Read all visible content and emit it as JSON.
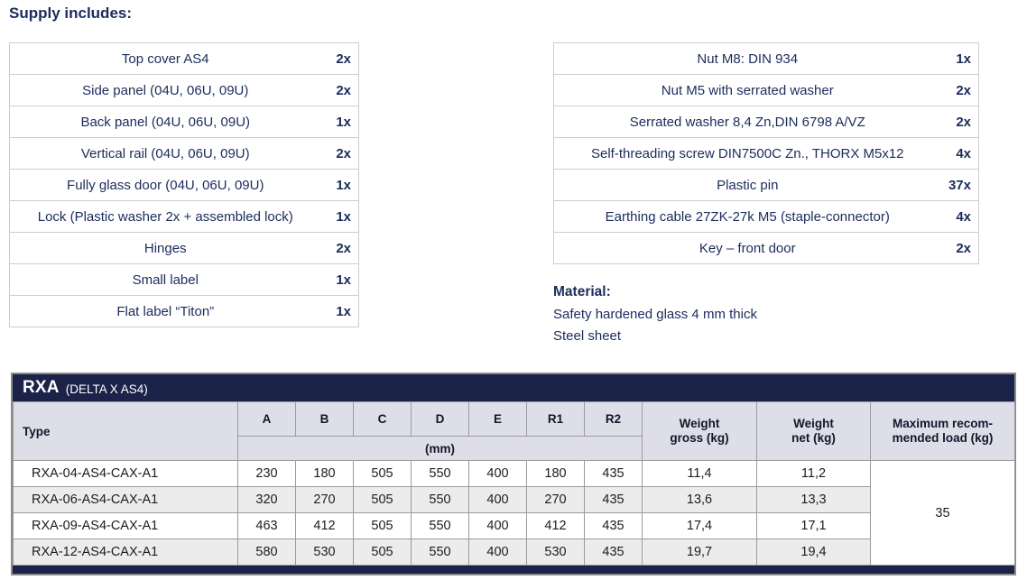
{
  "title": "Supply includes:",
  "supply_left": {
    "items": [
      {
        "name": "Top cover AS4",
        "qty": "2x"
      },
      {
        "name": "Side panel (04U, 06U, 09U)",
        "qty": "2x"
      },
      {
        "name": "Back panel (04U, 06U, 09U)",
        "qty": "1x"
      },
      {
        "name": "Vertical rail (04U, 06U, 09U)",
        "qty": "2x"
      },
      {
        "name": "Fully glass door (04U, 06U, 09U)",
        "qty": "1x"
      },
      {
        "name": "Lock (Plastic washer 2x + assembled lock)",
        "qty": "1x"
      },
      {
        "name": "Hinges",
        "qty": "2x"
      },
      {
        "name": "Small label",
        "qty": "1x"
      },
      {
        "name": "Flat label “Titon”",
        "qty": "1x"
      }
    ]
  },
  "supply_right": {
    "items": [
      {
        "name": "Nut M8: DIN 934",
        "qty": "1x"
      },
      {
        "name": "Nut M5 with serrated washer",
        "qty": "2x"
      },
      {
        "name": "Serrated washer 8,4 Zn,DIN 6798 A/VZ",
        "qty": "2x"
      },
      {
        "name": "Self-threading screw DIN7500C Zn., THORX M5x12",
        "qty": "4x"
      },
      {
        "name": "Plastic pin",
        "qty": "37x"
      },
      {
        "name": "Earthing cable 27ZK-27k M5 (staple-connector)",
        "qty": "4x"
      },
      {
        "name": "Key – front door",
        "qty": "2x"
      }
    ]
  },
  "material": {
    "title": "Material:",
    "lines": [
      "Safety hardened glass 4 mm thick",
      "Steel sheet"
    ]
  },
  "rxa": {
    "title": "RXA",
    "subtitle": "(DELTA X AS4)",
    "headers": {
      "type": "Type",
      "dims": [
        "A",
        "B",
        "C",
        "D",
        "E",
        "R1",
        "R2"
      ],
      "unit": "(mm)",
      "weight_gross": "Weight\ngross (kg)",
      "weight_net": "Weight\nnet (kg)",
      "max_load": "Maximum recom-\nmended load (kg)"
    },
    "rows": [
      {
        "type": "RXA-04-AS4-CAX-A1",
        "dims": [
          "230",
          "180",
          "505",
          "550",
          "400",
          "180",
          "435"
        ],
        "weight_gross": "11,4",
        "weight_net": "11,2"
      },
      {
        "type": "RXA-06-AS4-CAX-A1",
        "dims": [
          "320",
          "270",
          "505",
          "550",
          "400",
          "270",
          "435"
        ],
        "weight_gross": "13,6",
        "weight_net": "13,3"
      },
      {
        "type": "RXA-09-AS4-CAX-A1",
        "dims": [
          "463",
          "412",
          "505",
          "550",
          "400",
          "412",
          "435"
        ],
        "weight_gross": "17,4",
        "weight_net": "17,1"
      },
      {
        "type": "RXA-12-AS4-CAX-A1",
        "dims": [
          "580",
          "530",
          "505",
          "550",
          "400",
          "530",
          "435"
        ],
        "weight_gross": "19,7",
        "weight_net": "19,4"
      }
    ],
    "max_load": "35",
    "colors": {
      "navy": "#1b2349",
      "text_navy": "#1b2c5c",
      "header_bg": "#dedee9",
      "alt_row_bg": "#ececec",
      "border_gray": "#9b9b9b"
    }
  }
}
